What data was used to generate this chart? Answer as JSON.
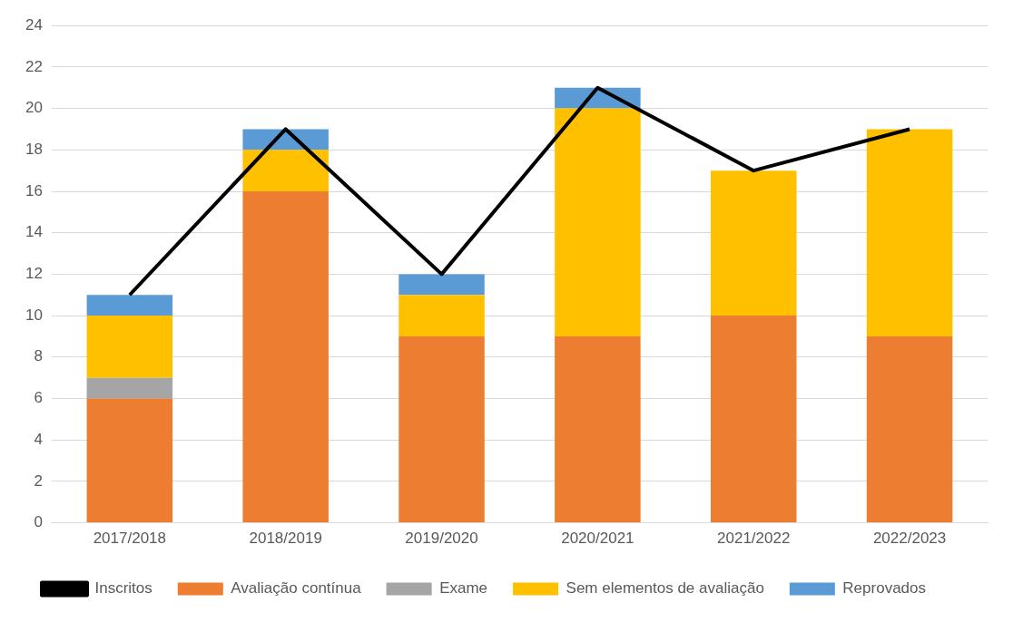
{
  "chart_data": {
    "type": "bar",
    "stacked": true,
    "categories": [
      "2017/2018",
      "2018/2019",
      "2019/2020",
      "2020/2021",
      "2021/2022",
      "2022/2023"
    ],
    "series": [
      {
        "name": "Avaliação contínua",
        "color": "#ed7d31",
        "values": [
          6,
          16,
          9,
          9,
          10,
          9
        ]
      },
      {
        "name": "Exame",
        "color": "#a5a5a5",
        "values": [
          1,
          0,
          0,
          0,
          0,
          0
        ]
      },
      {
        "name": "Sem elementos de avaliação",
        "color": "#ffc000",
        "values": [
          3,
          2,
          2,
          11,
          7,
          10
        ]
      },
      {
        "name": "Reprovados",
        "color": "#5b9bd5",
        "values": [
          1,
          1,
          1,
          1,
          0,
          0
        ]
      },
      {
        "name": "Inscritos",
        "type": "line",
        "color": "#000000",
        "values": [
          11,
          19,
          12,
          21,
          17,
          19
        ]
      }
    ],
    "ylim": [
      0,
      24
    ],
    "yticks": [
      0,
      2,
      4,
      6,
      8,
      10,
      12,
      14,
      16,
      18,
      20,
      22,
      24
    ],
    "grid": "y",
    "legend": "bottom",
    "marker": "none",
    "line_style": "solid"
  }
}
